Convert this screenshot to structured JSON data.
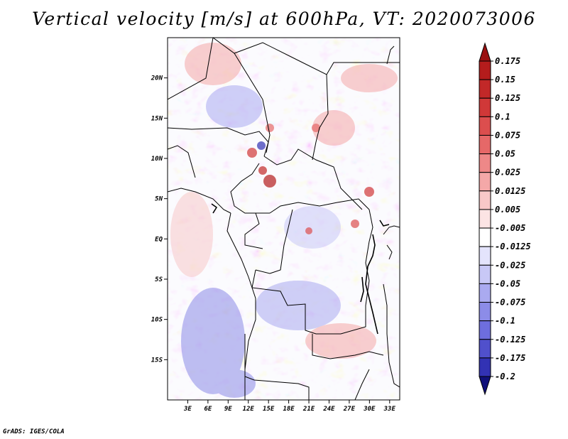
{
  "title": "Vertical velocity [m/s] at 600hPa, VT: 2020073006",
  "footer": "GrADS: IGES/COLA",
  "map": {
    "variable": "Vertical velocity",
    "units": "m/s",
    "level": "600hPa",
    "valid_time": "2020073006",
    "lon_range": [
      0,
      34.5
    ],
    "lat_range": [
      -20,
      25
    ],
    "x_ticks": [
      {
        "lon": 3,
        "label": "3E"
      },
      {
        "lon": 6,
        "label": "6E"
      },
      {
        "lon": 9,
        "label": "9E"
      },
      {
        "lon": 12,
        "label": "12E"
      },
      {
        "lon": 15,
        "label": "15E"
      },
      {
        "lon": 18,
        "label": "18E"
      },
      {
        "lon": 21,
        "label": "21E"
      },
      {
        "lon": 24,
        "label": "24E"
      },
      {
        "lon": 27,
        "label": "27E"
      },
      {
        "lon": 30,
        "label": "30E"
      },
      {
        "lon": 33,
        "label": "33E"
      }
    ],
    "y_ticks": [
      {
        "lat": 20,
        "label": "20N"
      },
      {
        "lat": 15,
        "label": "15N"
      },
      {
        "lat": 10,
        "label": "10N"
      },
      {
        "lat": 5,
        "label": "5N"
      },
      {
        "lat": 0,
        "label": "EQ"
      },
      {
        "lat": -5,
        "label": "5S"
      },
      {
        "lat": -10,
        "label": "10S"
      },
      {
        "lat": -15,
        "label": "15S"
      }
    ]
  },
  "colorbar": {
    "levels": [
      {
        "label": "0.175",
        "color": "#b41c1c"
      },
      {
        "label": "0.15",
        "color": "#c22828"
      },
      {
        "label": "0.125",
        "color": "#d03838"
      },
      {
        "label": "0.1",
        "color": "#dc4e4e"
      },
      {
        "label": "0.075",
        "color": "#e66868"
      },
      {
        "label": "0.05",
        "color": "#ee8888"
      },
      {
        "label": "0.025",
        "color": "#f4a8a8"
      },
      {
        "label": "0.0125",
        "color": "#f8c8c8"
      },
      {
        "label": "0.005",
        "color": "#fce4e4"
      },
      {
        "label": "-0.005",
        "color": "#ffffff"
      },
      {
        "label": "-0.0125",
        "color": "#e4e4fc"
      },
      {
        "label": "-0.025",
        "color": "#c8c8f6"
      },
      {
        "label": "-0.05",
        "color": "#aaaaf0"
      },
      {
        "label": "-0.075",
        "color": "#8c8ce8"
      },
      {
        "label": "-0.1",
        "color": "#6e6ede"
      },
      {
        "label": "-0.125",
        "color": "#5050cc"
      },
      {
        "label": "-0.175",
        "color": "#3232b4"
      },
      {
        "label": "-0.2",
        "color": "#1a1a96"
      }
    ],
    "top_arrow_color": "#9a1010",
    "bottom_arrow_color": "#10107a"
  }
}
